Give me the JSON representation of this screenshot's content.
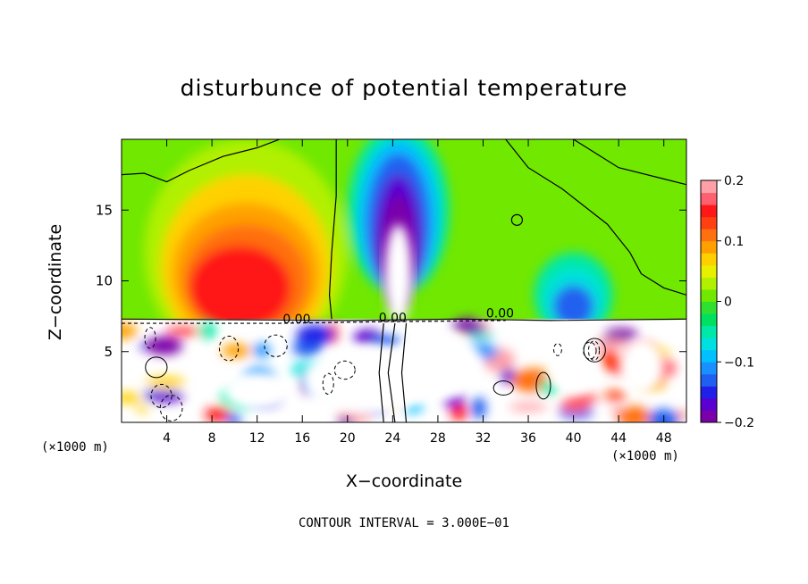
{
  "chart_data": {
    "type": "heatmap",
    "title": "disturbunce of potential temperature",
    "xlabel": "X−coordinate",
    "ylabel": "Z−coordinate",
    "x_unit_left": "(×1000 m)",
    "x_unit_right": "(×1000 m)",
    "xlim": [
      0,
      50
    ],
    "ylim": [
      0,
      20
    ],
    "x_ticks": [
      4,
      8,
      12,
      16,
      20,
      24,
      28,
      32,
      36,
      40,
      44,
      48
    ],
    "x_tick_labels": [
      "4",
      "8",
      "12",
      "16",
      "20",
      "24",
      "28",
      "32",
      "36",
      "40",
      "44",
      "48"
    ],
    "y_ticks": [
      5,
      10,
      15
    ],
    "y_tick_labels": [
      "5",
      "10",
      "15"
    ],
    "colorbar": {
      "range": [
        -0.2,
        0.2
      ],
      "tick_values": [
        0.2,
        0.1,
        0,
        -0.1,
        -0.2
      ],
      "tick_labels": [
        "0.2",
        "0.1",
        "0",
        "−0.1",
        "−0.2"
      ],
      "colors": [
        "#7a00a8",
        "#5a00d0",
        "#2020e8",
        "#2060f0",
        "#1890ff",
        "#00c0ff",
        "#00e0e0",
        "#00e8a8",
        "#00e060",
        "#30e030",
        "#70e800",
        "#b0f000",
        "#e8f000",
        "#ffd000",
        "#ffa000",
        "#ff7010",
        "#ff4010",
        "#ff1818",
        "#ff6070",
        "#ffa0a8"
      ]
    },
    "contour_labels": [
      {
        "text": "0.00",
        "x": 15.5,
        "z": 7.0
      },
      {
        "text": "0.00",
        "x": 24.0,
        "z": 7.1
      },
      {
        "text": "0.00",
        "x": 33.5,
        "z": 7.4
      }
    ],
    "features": [
      {
        "name": "warm anomaly",
        "x_center": 11,
        "z_center": 10,
        "value": 0.15
      },
      {
        "name": "cold plume",
        "x_center": 24.5,
        "z_center": 14,
        "value": -0.2
      },
      {
        "name": "cold anomaly",
        "x_center": 40,
        "z_center": 9,
        "value": -0.12
      }
    ],
    "contour_interval_label": "CONTOUR INTERVAL = 3.000E−01"
  }
}
